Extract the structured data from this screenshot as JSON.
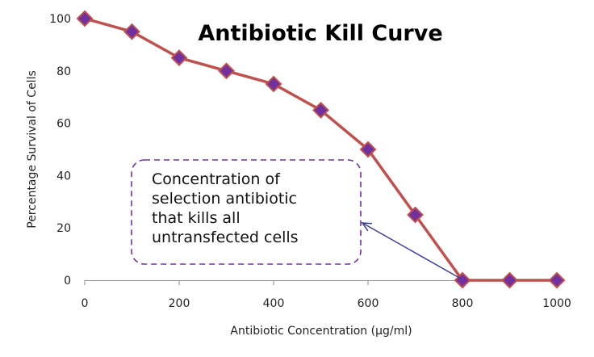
{
  "chart_data": {
    "type": "line",
    "title": "Antibiotic Kill Curve",
    "xlabel": "Antibiotic Concentration (µg/ml)",
    "ylabel": "Percentage Survival of Cells",
    "xlim": [
      0,
      1000
    ],
    "ylim": [
      0,
      100
    ],
    "x_ticks": [
      0,
      200,
      400,
      600,
      800,
      1000
    ],
    "y_ticks": [
      0,
      20,
      40,
      60,
      80,
      100
    ],
    "grid": false,
    "x": [
      0,
      100,
      200,
      300,
      400,
      500,
      600,
      700,
      800,
      900,
      1000
    ],
    "series": [
      {
        "values": [
          100,
          95,
          85,
          80,
          75,
          65,
          50,
          25,
          0,
          0,
          0
        ]
      }
    ],
    "annotation": {
      "lines": [
        "Concentration of",
        "selection antibiotic",
        "that kills all",
        "untransfected cells"
      ],
      "points_to_x": 800,
      "points_to_y": 0
    },
    "colors": {
      "line": "#C0504D",
      "marker_fill": "#7030A0",
      "arrow": "#3C3C9C",
      "box_border": "#7030A0",
      "axis": "#888888"
    }
  }
}
